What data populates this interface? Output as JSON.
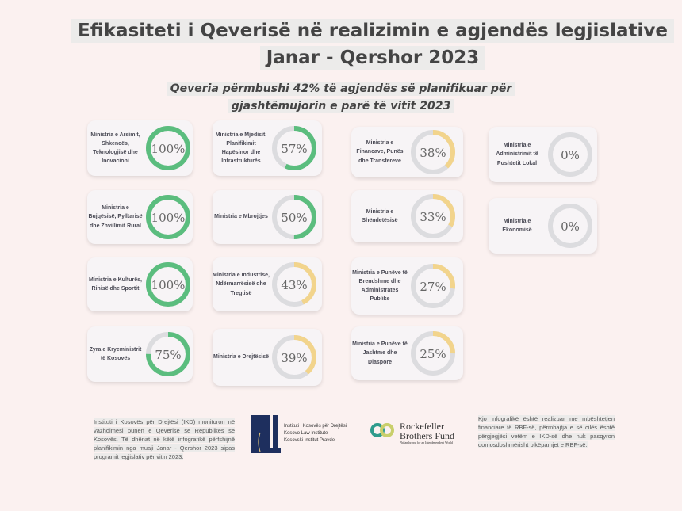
{
  "title_line1": "Efikasiteti i Qeverisë në realizimin e agjendës legjislative",
  "title_line2": "Janar - Qershor 2023",
  "subtitle_line1": "Qeveria përmbushi 42% të agjendës së planifikuar për",
  "subtitle_line2": "gjashtëmujorin e parë të vitit 2023",
  "colors": {
    "high": "#5bbd7e",
    "mid": "#f2d48c",
    "track": "#dcdcdf",
    "background": "#fbf1f0"
  },
  "chart_data": {
    "type": "donut-grid",
    "items": [
      {
        "label": "Ministria e Arsimit, Shkencës, Teknologjisë dhe Inovacioni",
        "value": 100,
        "display": "100%"
      },
      {
        "label": "Ministria e Bujqësisë, Pylltarisë dhe Zhvillimit Rural",
        "value": 100,
        "display": "100%"
      },
      {
        "label": "Ministria e Kulturës, Rinisë dhe Sportit",
        "value": 100,
        "display": "100%"
      },
      {
        "label": "Zyra e Kryeministrit të Kosovës",
        "value": 75,
        "display": "75%"
      },
      {
        "label": "Ministria e Mjedisit, Planifikimit Hapësinor dhe Infrastrukturës",
        "value": 57,
        "display": "57%"
      },
      {
        "label": "Ministria e Mbrojtjes",
        "value": 50,
        "display": "50%"
      },
      {
        "label": "Ministria e Industrisë, Ndërmarrësisë dhe Tregtisë",
        "value": 43,
        "display": "43%"
      },
      {
        "label": "Ministria e Drejtësisë",
        "value": 39,
        "display": "39%"
      },
      {
        "label": "Ministria e Financave, Punës dhe Transfereve",
        "value": 38,
        "display": "38%"
      },
      {
        "label": "Ministria e Shëndetësisë",
        "value": 33,
        "display": "33%"
      },
      {
        "label": "Ministria e Punëve të Brendshme dhe Administratës Publike",
        "value": 27,
        "display": "27%"
      },
      {
        "label": "Ministria e Punëve të Jashtme dhe Diasporë",
        "value": 25,
        "display": "25%"
      },
      {
        "label": "Ministria e Administrimit të Pushtetit Lokal",
        "value": 0,
        "display": "0%"
      },
      {
        "label": "Ministria e Ekonomisë",
        "value": 0,
        "display": "0%"
      }
    ]
  },
  "footer": {
    "left_text": "Instituti i Kosovës për Drejtësi (IKD) monitoron në vazhdimësi punën e Qeverisë së Republikës së Kosovës. Të dhënat në këtë infografikë përfshijnë planifikimin nga muaji Janar - Qershor 2023 sipas programit legjislativ për vitin 2023.",
    "ikd_logo_text": [
      "Instituti i Kosovës për Drejtësi",
      "Kosovo Law Institute",
      "Kosovski Institut Pravde"
    ],
    "rbf_logo_text": [
      "Rockefeller",
      "Brothers Fund",
      "Philanthropy for an Interdependent World"
    ],
    "right_text": "Kjo infografikë është realizuar me mbështetjen financiare të RBF-së, përmbajtja e së cilës është përgjegjësi vetëm e IKD-së dhe nuk pasqyron domosdoshmërisht pikëpamjet e RBF-së."
  }
}
